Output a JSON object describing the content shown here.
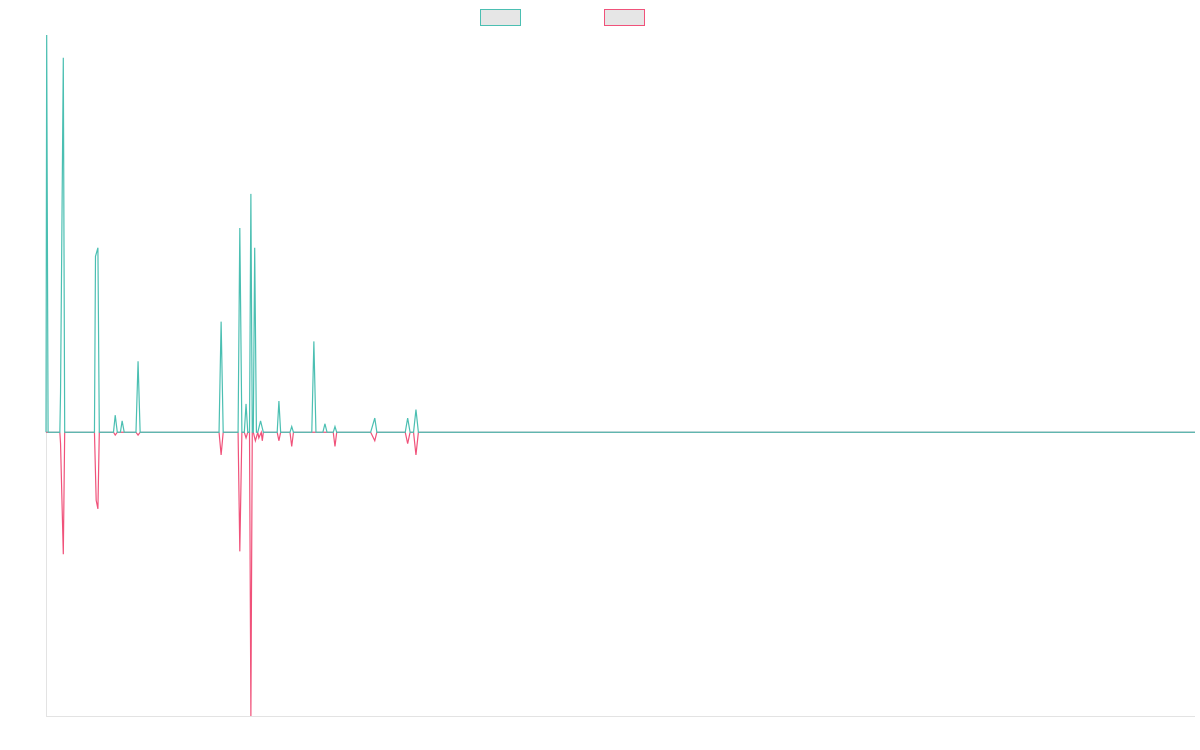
{
  "colors": {
    "teal": "#4bbfb2",
    "pink": "#f0527a",
    "legend_fill": "#e6e6e6",
    "axis": "#e3e3e3"
  },
  "chart_data": {
    "type": "line",
    "title": "",
    "xlabel": "",
    "ylabel": "",
    "grid": false,
    "legend_placement": "top-center",
    "x_range": [
      0,
      332
    ],
    "y_range": [
      -100,
      140
    ],
    "series": [
      {
        "color_key": "teal",
        "points": [
          [
            0,
            0
          ],
          [
            0.2,
            140
          ],
          [
            0.6,
            0
          ],
          [
            4,
            0
          ],
          [
            4.2,
            14
          ],
          [
            5,
            132
          ],
          [
            5.4,
            0
          ],
          [
            14,
            0
          ],
          [
            14.3,
            62
          ],
          [
            15,
            65
          ],
          [
            15.4,
            0
          ],
          [
            19.5,
            0
          ],
          [
            20,
            6
          ],
          [
            20.6,
            0
          ],
          [
            21.5,
            0
          ],
          [
            22,
            4
          ],
          [
            22.6,
            0
          ],
          [
            26,
            0
          ],
          [
            26.6,
            25
          ],
          [
            27.2,
            0
          ],
          [
            50,
            0
          ],
          [
            50.6,
            39
          ],
          [
            51.2,
            0
          ],
          [
            55.5,
            0
          ],
          [
            56,
            72
          ],
          [
            56.6,
            0
          ],
          [
            57.3,
            0
          ],
          [
            57.8,
            10
          ],
          [
            58.3,
            0
          ],
          [
            58.8,
            0
          ],
          [
            59.2,
            84
          ],
          [
            59.6,
            0
          ],
          [
            59.9,
            0
          ],
          [
            60.3,
            65
          ],
          [
            60.8,
            0
          ],
          [
            61.2,
            0
          ],
          [
            62,
            4
          ],
          [
            62.8,
            0
          ],
          [
            66.8,
            0
          ],
          [
            67.3,
            11
          ],
          [
            67.8,
            0
          ],
          [
            70.5,
            0
          ],
          [
            71,
            2
          ],
          [
            71.5,
            0
          ],
          [
            76.8,
            0
          ],
          [
            77.4,
            32
          ],
          [
            78,
            0
          ],
          [
            80,
            0
          ],
          [
            80.6,
            3
          ],
          [
            81.2,
            0
          ],
          [
            83,
            0
          ],
          [
            83.5,
            2
          ],
          [
            84,
            0
          ],
          [
            93.8,
            0
          ],
          [
            95,
            5
          ],
          [
            95.6,
            0
          ],
          [
            103.8,
            0
          ],
          [
            104.5,
            5
          ],
          [
            105.2,
            0
          ],
          [
            106.2,
            0
          ],
          [
            106.9,
            8
          ],
          [
            107.6,
            0
          ],
          [
            332,
            0
          ]
        ]
      },
      {
        "color_key": "pink",
        "points": [
          [
            0,
            0
          ],
          [
            4,
            0
          ],
          [
            4.2,
            -4
          ],
          [
            5,
            -43
          ],
          [
            5.4,
            0
          ],
          [
            14,
            0
          ],
          [
            14.5,
            -24
          ],
          [
            15,
            -27
          ],
          [
            15.4,
            0
          ],
          [
            19.5,
            0
          ],
          [
            20,
            -1
          ],
          [
            20.6,
            0
          ],
          [
            26,
            0
          ],
          [
            26.6,
            -1
          ],
          [
            27.2,
            0
          ],
          [
            50,
            0
          ],
          [
            50.6,
            -8
          ],
          [
            51.2,
            0
          ],
          [
            55.5,
            0
          ],
          [
            56,
            -42
          ],
          [
            56.6,
            0
          ],
          [
            57.3,
            0
          ],
          [
            57.8,
            -2
          ],
          [
            58.3,
            0
          ],
          [
            58.8,
            0
          ],
          [
            59.2,
            -100
          ],
          [
            59.6,
            0
          ],
          [
            59.9,
            0
          ],
          [
            60.5,
            -3
          ],
          [
            61.2,
            0
          ],
          [
            61.5,
            -2
          ],
          [
            62.2,
            0
          ],
          [
            62.5,
            -3
          ],
          [
            62.8,
            0
          ],
          [
            66.8,
            0
          ],
          [
            67.3,
            -3
          ],
          [
            67.8,
            0
          ],
          [
            70.5,
            0
          ],
          [
            71,
            -5
          ],
          [
            71.5,
            0
          ],
          [
            83,
            0
          ],
          [
            83.5,
            -5
          ],
          [
            84,
            0
          ],
          [
            93.8,
            0
          ],
          [
            95,
            -3
          ],
          [
            95.6,
            0
          ],
          [
            103.8,
            0
          ],
          [
            104.5,
            -4
          ],
          [
            105.2,
            0
          ],
          [
            106.2,
            0
          ],
          [
            106.9,
            -8
          ],
          [
            107.6,
            0
          ],
          [
            332,
            0
          ]
        ]
      }
    ]
  }
}
